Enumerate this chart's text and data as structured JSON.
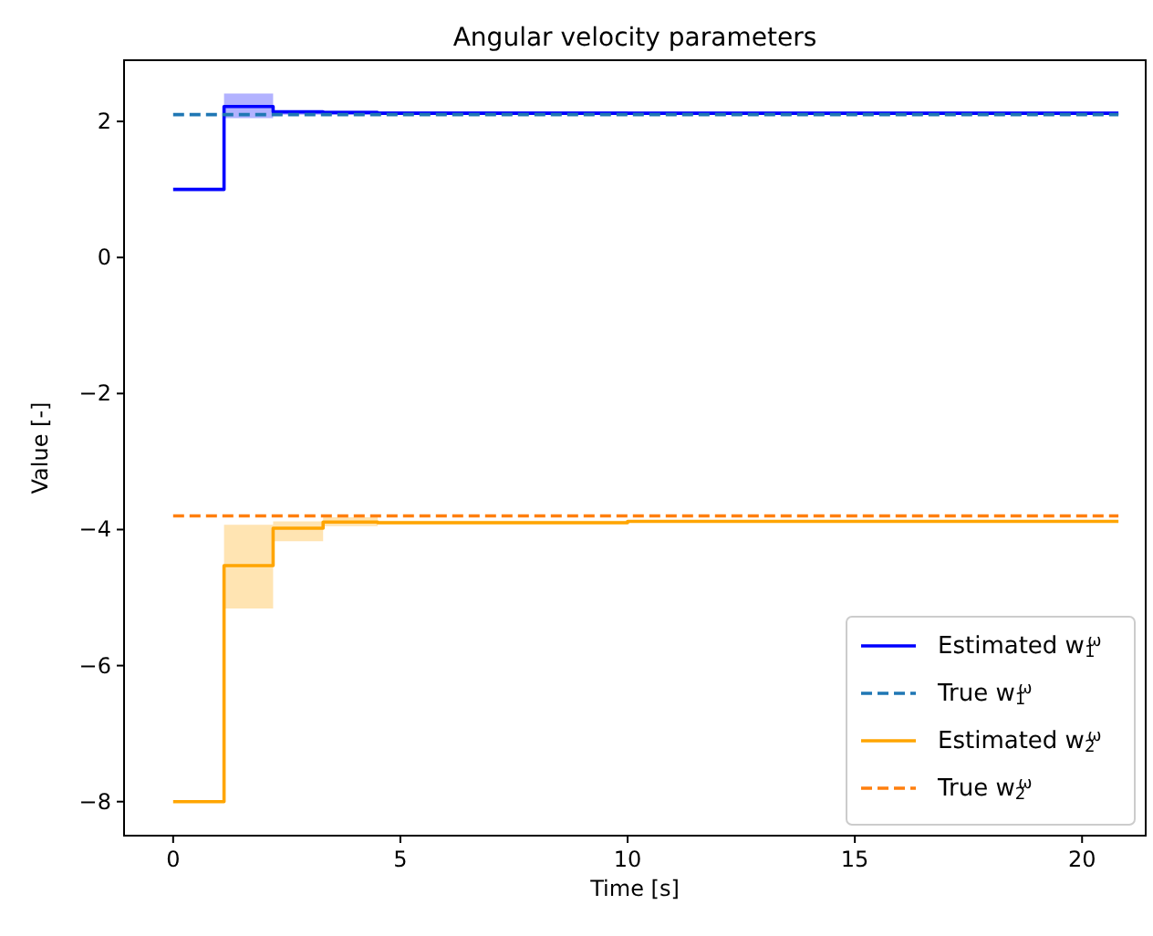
{
  "chart_data": {
    "type": "step",
    "title": "Angular velocity parameters",
    "xlabel": "Time [s]",
    "ylabel": "Value [-]",
    "xlim": [
      -1.08,
      21.4
    ],
    "ylim": [
      -8.5,
      2.9
    ],
    "xticks": [
      0,
      5,
      10,
      15,
      20
    ],
    "yticks": [
      {
        "value": -8,
        "label": "−8"
      },
      {
        "value": -6,
        "label": "−6"
      },
      {
        "value": -4,
        "label": "−4"
      },
      {
        "value": -2,
        "label": "−2"
      },
      0,
      2
    ],
    "grid": false,
    "legend": "lower right",
    "marker": "none",
    "series": [
      {
        "name": "Estimated w$_{1}$$^{ω}$",
        "color": "#0000ff",
        "line_style": "solid",
        "x": [
          0,
          1.12,
          2.2,
          3.3,
          4.5,
          10,
          20.8
        ],
        "values": [
          1.0,
          2.22,
          2.14,
          2.13,
          2.12,
          2.12,
          2.12
        ],
        "lower": [
          1.0,
          2.05,
          2.1,
          2.1,
          2.1,
          2.1,
          2.1
        ],
        "upper": [
          1.0,
          2.41,
          2.16,
          2.16,
          2.15,
          2.14,
          2.14
        ]
      },
      {
        "name": "True w$_{1}$$^{ω}$",
        "type": "line",
        "color": "#1f77b4",
        "line_style": "dashed",
        "x": [
          0,
          20.8
        ],
        "values": [
          2.1,
          2.1
        ]
      },
      {
        "name": "Estimated w$_{2}$$^{ω}$",
        "color": "#ffa500",
        "line_style": "solid",
        "x": [
          0,
          1.12,
          2.2,
          3.3,
          4.5,
          10,
          20.8
        ],
        "values": [
          -8,
          -4.53,
          -3.98,
          -3.89,
          -3.9,
          -3.88,
          -3.88
        ],
        "lower": [
          -8,
          -5.16,
          -4.17,
          -3.95,
          -3.92,
          -3.9,
          -3.9
        ],
        "upper": [
          -8,
          -3.93,
          -3.88,
          -3.82,
          -3.87,
          -3.86,
          -3.86
        ]
      },
      {
        "name": "True w$_{2}$$^{ω}$",
        "type": "line",
        "color": "#ff7f0e",
        "line_style": "dashed",
        "x": [
          0,
          20.8
        ],
        "values": [
          -3.8,
          -3.8
        ]
      }
    ]
  }
}
